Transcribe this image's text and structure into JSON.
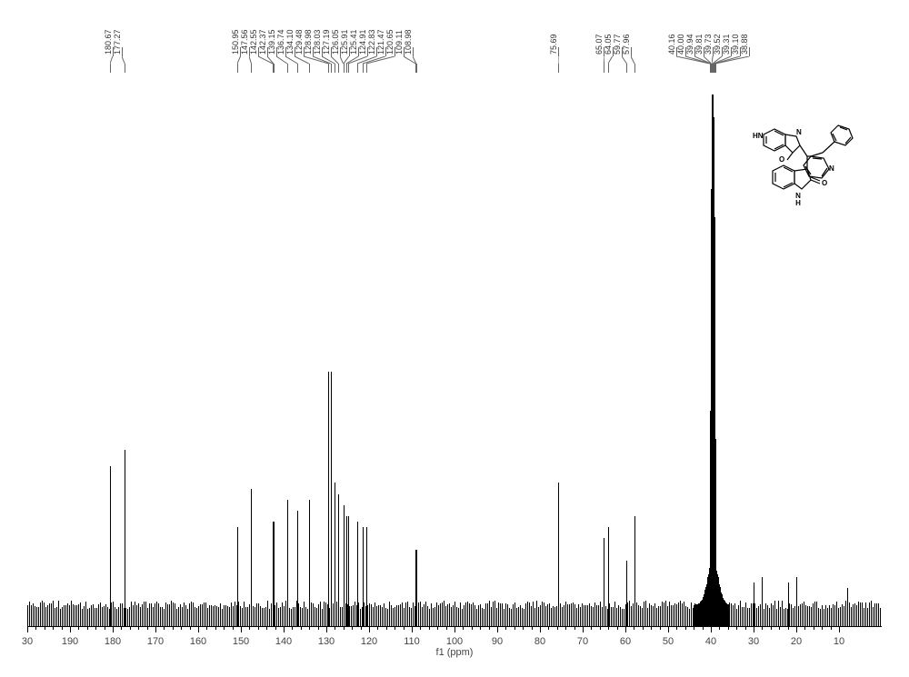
{
  "chart": {
    "type": "nmr-spectrum",
    "background_color": "#ffffff",
    "peak_color": "#000000",
    "label_color": "#333333",
    "axis_color": "#000000",
    "xlim": [
      200,
      0
    ],
    "xtick_step": 10,
    "xticks": [
      200,
      190,
      180,
      170,
      160,
      150,
      140,
      130,
      120,
      110,
      100,
      90,
      80,
      70,
      60,
      50,
      40,
      30,
      20,
      10
    ],
    "xtick_labels": [
      "30",
      "190",
      "180",
      "170",
      "160",
      "150",
      "140",
      "130",
      "120",
      "110",
      "100",
      "90",
      "80",
      "70",
      "60",
      "50",
      "40",
      "30",
      "20",
      "10"
    ],
    "axis_title": "f1 (ppm)",
    "baseline_y": 0.04,
    "peak_label_groups": [
      {
        "peaks": [
          "180.67",
          "177.27"
        ],
        "x_center": 179
      },
      {
        "peaks": [
          "150.95",
          "147.56",
          "142.55",
          "142.37",
          "139.15",
          "136.74",
          "134.10",
          "129.48",
          "128.98",
          "128.03",
          "127.19",
          "126.05",
          "125.91",
          "125.41",
          "124.91",
          "122.83",
          "121.47",
          "120.65",
          "109.11",
          "108.98"
        ],
        "x_center": 130
      },
      {
        "peaks": [
          "75.69"
        ],
        "x_center": 75.69
      },
      {
        "peaks": [
          "65.07",
          "64.05",
          "59.77",
          "57.96"
        ],
        "x_center": 62
      },
      {
        "peaks": [
          "40.16",
          "40.00",
          "39.94",
          "39.81",
          "39.73",
          "39.52",
          "39.31",
          "39.10",
          "38.88"
        ],
        "x_center": 39.5
      }
    ],
    "spectrum_peaks": [
      {
        "ppm": 180.67,
        "height": 0.25
      },
      {
        "ppm": 177.27,
        "height": 0.28
      },
      {
        "ppm": 150.95,
        "height": 0.14
      },
      {
        "ppm": 147.56,
        "height": 0.21
      },
      {
        "ppm": 142.55,
        "height": 0.15
      },
      {
        "ppm": 142.37,
        "height": 0.15
      },
      {
        "ppm": 139.15,
        "height": 0.19
      },
      {
        "ppm": 136.74,
        "height": 0.17
      },
      {
        "ppm": 134.1,
        "height": 0.19
      },
      {
        "ppm": 129.48,
        "height": 0.42
      },
      {
        "ppm": 128.98,
        "height": 0.42
      },
      {
        "ppm": 128.03,
        "height": 0.22
      },
      {
        "ppm": 127.19,
        "height": 0.2
      },
      {
        "ppm": 126.05,
        "height": 0.18
      },
      {
        "ppm": 125.91,
        "height": 0.18
      },
      {
        "ppm": 125.41,
        "height": 0.16
      },
      {
        "ppm": 124.91,
        "height": 0.16
      },
      {
        "ppm": 122.83,
        "height": 0.15
      },
      {
        "ppm": 121.47,
        "height": 0.14
      },
      {
        "ppm": 120.65,
        "height": 0.14
      },
      {
        "ppm": 109.11,
        "height": 0.1
      },
      {
        "ppm": 108.98,
        "height": 0.1
      },
      {
        "ppm": 75.69,
        "height": 0.22
      },
      {
        "ppm": 65.07,
        "height": 0.12
      },
      {
        "ppm": 64.05,
        "height": 0.14
      },
      {
        "ppm": 59.77,
        "height": 0.08
      },
      {
        "ppm": 57.96,
        "height": 0.16
      },
      {
        "ppm": 40.16,
        "height": 0.35
      },
      {
        "ppm": 40.0,
        "height": 0.6
      },
      {
        "ppm": 39.94,
        "height": 0.75
      },
      {
        "ppm": 39.81,
        "height": 0.85
      },
      {
        "ppm": 39.73,
        "height": 0.92
      },
      {
        "ppm": 39.52,
        "height": 0.88
      },
      {
        "ppm": 39.31,
        "height": 0.7
      },
      {
        "ppm": 39.1,
        "height": 0.5
      },
      {
        "ppm": 38.88,
        "height": 0.3
      },
      {
        "ppm": 30.0,
        "height": 0.04
      },
      {
        "ppm": 28.0,
        "height": 0.05
      },
      {
        "ppm": 22.0,
        "height": 0.04
      },
      {
        "ppm": 20.0,
        "height": 0.05
      },
      {
        "ppm": 8.0,
        "height": 0.03
      }
    ],
    "molecule_labels": {
      "hn1": "HN",
      "n1": "N",
      "nh2": "N\nH",
      "o1": "O",
      "o2": "O",
      "n2": "N"
    }
  }
}
